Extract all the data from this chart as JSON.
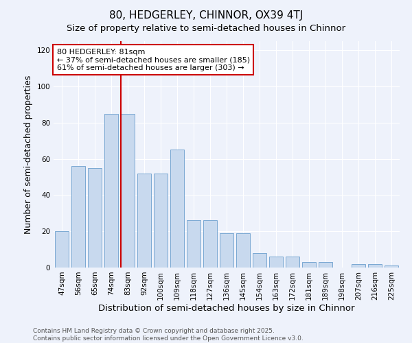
{
  "title": "80, HEDGERLEY, CHINNOR, OX39 4TJ",
  "subtitle": "Size of property relative to semi-detached houses in Chinnor",
  "xlabel": "Distribution of semi-detached houses by size in Chinnor",
  "ylabel": "Number of semi-detached properties",
  "categories": [
    "47sqm",
    "56sqm",
    "65sqm",
    "74sqm",
    "83sqm",
    "92sqm",
    "100sqm",
    "109sqm",
    "118sqm",
    "127sqm",
    "136sqm",
    "145sqm",
    "154sqm",
    "163sqm",
    "172sqm",
    "181sqm",
    "189sqm",
    "198sqm",
    "207sqm",
    "216sqm",
    "225sqm"
  ],
  "values": [
    20,
    56,
    55,
    85,
    85,
    52,
    52,
    65,
    26,
    26,
    19,
    19,
    8,
    6,
    6,
    3,
    3,
    0,
    2,
    2,
    1
  ],
  "bar_color": "#c8d9ee",
  "bar_edge_color": "#7aa8d2",
  "marker_index": 4,
  "marker_color": "#cc0000",
  "annotation_title": "80 HEDGERLEY: 81sqm",
  "annotation_line1": "← 37% of semi-detached houses are smaller (185)",
  "annotation_line2": "61% of semi-detached houses are larger (303) →",
  "annotation_box_color": "#cc0000",
  "ylim": [
    0,
    125
  ],
  "yticks": [
    0,
    20,
    40,
    60,
    80,
    100,
    120
  ],
  "footer1": "Contains HM Land Registry data © Crown copyright and database right 2025.",
  "footer2": "Contains public sector information licensed under the Open Government Licence v3.0.",
  "background_color": "#eef2fb",
  "title_fontsize": 11,
  "subtitle_fontsize": 9.5,
  "axis_label_fontsize": 9,
  "tick_fontsize": 7.5,
  "footer_fontsize": 6.5,
  "annotation_fontsize": 8
}
